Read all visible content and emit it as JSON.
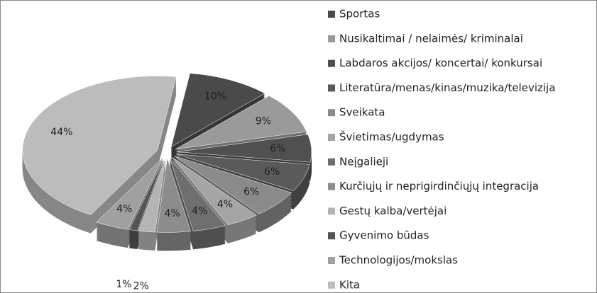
{
  "chart_data": {
    "type": "pie",
    "categories": [
      "Sportas",
      "Nusikaltimai / nelaimės/ kriminalai",
      "Labdaros akcijos/ koncertai/ konkursai",
      "Literatūra/menas/kinas/muzika/televizija",
      "Sveikata",
      "Švietimas/ugdymas",
      "Neįgalieji",
      "Kurčiųjų ir neprigirdinčiųjų integracija",
      "Gestų kalba/vertėjai",
      "Gyvenimo būdas",
      "Technologijos/mokslas",
      "Kita"
    ],
    "values": [
      10,
      9,
      6,
      6,
      6,
      4,
      4,
      4,
      2,
      1,
      4,
      44
    ],
    "value_labels": [
      "10%",
      "9%",
      "6%",
      "6%",
      "6%",
      "4%",
      "4%",
      "4%",
      "2%",
      "1%",
      "4%",
      "44%"
    ],
    "colors": [
      "#4a4a4a",
      "#9a9a9a",
      "#505050",
      "#5a5a5a",
      "#8a8a8a",
      "#a5a5a5",
      "#6e6e6e",
      "#8c8c8c",
      "#b4b4b4",
      "#555555",
      "#a0a0a0",
      "#bcbcbc"
    ],
    "legend": "right"
  }
}
